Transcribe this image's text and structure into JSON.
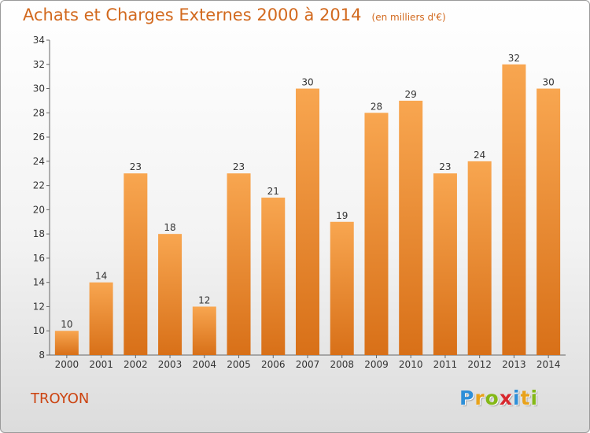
{
  "header": {
    "title": "Achats et Charges Externes 2000 à 2014",
    "unit": "(en milliers d'€)"
  },
  "footer": {
    "place": "TROYON",
    "logo_letters": [
      {
        "char": "P",
        "color": "#2e8fd8"
      },
      {
        "char": "r",
        "color": "#e8a21b"
      },
      {
        "char": "o",
        "color": "#84b817"
      },
      {
        "char": "x",
        "color": "#d8282e"
      },
      {
        "char": "i",
        "color": "#2e8fd8"
      },
      {
        "char": "t",
        "color": "#e8a21b"
      },
      {
        "char": "i",
        "color": "#84b817"
      }
    ]
  },
  "colors": {
    "title": "#d2691e",
    "place": "#cc4411",
    "bar_light": "#f8a650",
    "bar_dark": "#d87018"
  },
  "chart_data": {
    "type": "bar",
    "title": "Achats et Charges Externes 2000 à 2014",
    "subtitle": "(en milliers d'€)",
    "categories": [
      "2000",
      "2001",
      "2002",
      "2003",
      "2004",
      "2005",
      "2006",
      "2007",
      "2008",
      "2009",
      "2010",
      "2011",
      "2012",
      "2013",
      "2014"
    ],
    "values": [
      10,
      14,
      23,
      18,
      12,
      23,
      21,
      30,
      19,
      28,
      29,
      23,
      24,
      32,
      30
    ],
    "yticks": [
      8,
      10,
      12,
      14,
      16,
      18,
      20,
      22,
      24,
      26,
      28,
      30,
      32,
      34
    ],
    "ylim": [
      8,
      34
    ],
    "grid": false,
    "legend": "none"
  }
}
